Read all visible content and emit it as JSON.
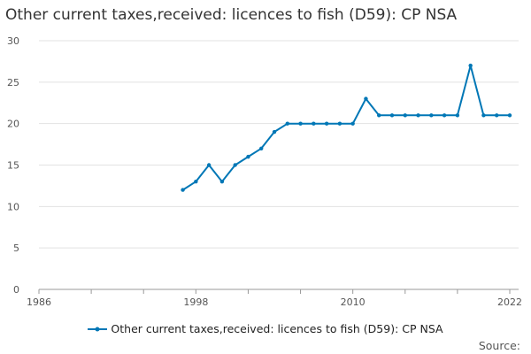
{
  "title": "Other current taxes,received: licences to fish (D59): CP NSA",
  "source_label": "Source:",
  "chart_data": {
    "type": "line",
    "title": "Other current taxes,received: licences to fish (D59): CP NSA",
    "xlabel": "",
    "ylabel": "",
    "xlim": [
      1986,
      2022
    ],
    "ylim": [
      0,
      30
    ],
    "x_tick_labels": [
      "1986",
      "1998",
      "2010",
      "2022"
    ],
    "y_ticks": [
      0,
      5,
      10,
      15,
      20,
      25,
      30
    ],
    "grid": "horizontal",
    "legend_position": "bottom",
    "series": [
      {
        "name": "Other current taxes,received: licences to fish (D59): CP NSA",
        "color": "#0077b6",
        "x": [
          1997,
          1998,
          1999,
          2000,
          2001,
          2002,
          2003,
          2004,
          2005,
          2006,
          2007,
          2008,
          2009,
          2010,
          2011,
          2012,
          2013,
          2014,
          2015,
          2016,
          2017,
          2018,
          2019,
          2020,
          2021,
          2022
        ],
        "values": [
          12,
          13,
          15,
          13,
          15,
          16,
          17,
          19,
          20,
          20,
          20,
          20,
          20,
          20,
          23,
          21,
          21,
          21,
          21,
          21,
          21,
          21,
          27,
          21,
          21,
          21
        ]
      }
    ]
  }
}
